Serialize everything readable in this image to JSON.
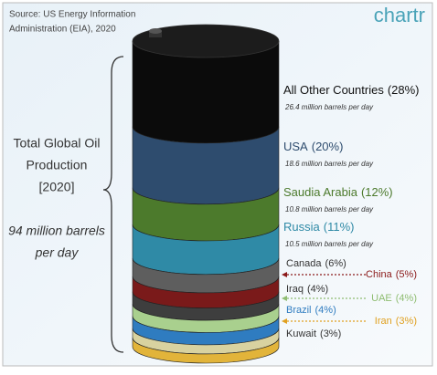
{
  "chart_data": {
    "type": "barrel",
    "source": [
      "Source: US Energy Information",
      "Administration (EIA), 2020"
    ],
    "logo": "chartr",
    "title": [
      "Total Global Oil",
      "Production",
      "[2020]"
    ],
    "subtitle": [
      "94 million barrels",
      "per day"
    ],
    "segments": [
      {
        "name": "All Other Countries",
        "value": 28,
        "value_label": "(28%)",
        "detail": "26.4 million barrels per day",
        "color": "#0b0b0b",
        "label_color": "#111111"
      },
      {
        "name": "USA",
        "value": 20,
        "value_label": "(20%)",
        "detail": "18.6 million barrels per day",
        "color": "#2e4c6e",
        "label_color": "#2e4c6e"
      },
      {
        "name": "Saudia Arabia",
        "value": 12,
        "value_label": "(12%)",
        "detail": "10.8 million barrels per day",
        "color": "#4c7a2c",
        "label_color": "#4c7a2c"
      },
      {
        "name": "Russia",
        "value": 11,
        "value_label": "(11%)",
        "detail": "10.5 million barrels per day",
        "color": "#2f8aa6",
        "label_color": "#2f8aa6"
      },
      {
        "name": "Canada",
        "value": 6,
        "value_label": "(6%)",
        "color": "#5e5e5e",
        "label_color": "#333333"
      },
      {
        "name": "China",
        "value": 5,
        "value_label": "(5%)",
        "color": "#7a1a1a",
        "label_color": "#8b1a1a",
        "arrow": true
      },
      {
        "name": "Iraq",
        "value": 4,
        "value_label": "(4%)",
        "color": "#3e3e3e",
        "label_color": "#333333"
      },
      {
        "name": "UAE",
        "value": 4,
        "value_label": "(4%)",
        "color": "#a9d08e",
        "label_color": "#8fbd72",
        "arrow": true
      },
      {
        "name": "Brazil",
        "value": 4,
        "value_label": "(4%)",
        "color": "#2f7cc0",
        "label_color": "#2f7cc0"
      },
      {
        "name": "Iran",
        "value": 3,
        "value_label": "(3%)",
        "color": "#d8d2a0",
        "label_color": "#e0a020",
        "arrow": true
      },
      {
        "name": "Kuwait",
        "value": 3,
        "value_label": "(3%)",
        "color": "#e2b43a",
        "label_color": "#333333"
      }
    ]
  }
}
